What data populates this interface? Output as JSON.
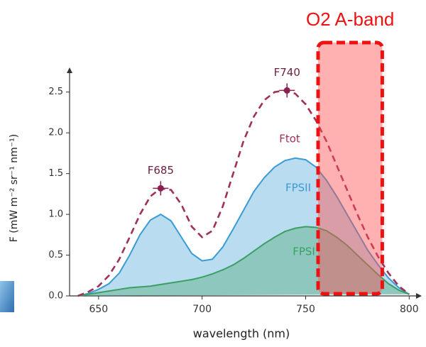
{
  "chart_data": {
    "type": "line",
    "xlabel": "wavelength (nm)",
    "ylabel": "F (mW m⁻² sr⁻¹ nm⁻¹)",
    "x": [
      640,
      645,
      650,
      655,
      660,
      665,
      670,
      675,
      680,
      685,
      690,
      695,
      700,
      705,
      710,
      715,
      720,
      725,
      730,
      735,
      740,
      745,
      750,
      755,
      760,
      765,
      770,
      775,
      780,
      785,
      790,
      795,
      800
    ],
    "series": [
      {
        "name": "FPSII",
        "color": "#3a9bd5",
        "fill": true,
        "values": [
          0,
          0.03,
          0.08,
          0.15,
          0.28,
          0.5,
          0.75,
          0.93,
          1.0,
          0.92,
          0.72,
          0.52,
          0.43,
          0.45,
          0.6,
          0.82,
          1.05,
          1.28,
          1.45,
          1.58,
          1.66,
          1.69,
          1.67,
          1.58,
          1.42,
          1.22,
          1.0,
          0.78,
          0.56,
          0.38,
          0.22,
          0.1,
          0.02
        ]
      },
      {
        "name": "FPSI",
        "color": "#3aa062",
        "fill": true,
        "values": [
          0,
          0.02,
          0.04,
          0.06,
          0.08,
          0.1,
          0.11,
          0.12,
          0.14,
          0.16,
          0.18,
          0.2,
          0.23,
          0.27,
          0.32,
          0.38,
          0.46,
          0.55,
          0.64,
          0.72,
          0.79,
          0.83,
          0.85,
          0.84,
          0.8,
          0.72,
          0.62,
          0.5,
          0.38,
          0.26,
          0.15,
          0.07,
          0.02
        ]
      },
      {
        "name": "Ftot",
        "color": "#a0305a",
        "fill": false,
        "dashed": true,
        "values": [
          0,
          0.05,
          0.12,
          0.25,
          0.45,
          0.72,
          1.0,
          1.22,
          1.32,
          1.3,
          1.12,
          0.85,
          0.72,
          0.8,
          1.1,
          1.5,
          1.9,
          2.2,
          2.4,
          2.5,
          2.52,
          2.48,
          2.35,
          2.15,
          1.9,
          1.6,
          1.3,
          1.0,
          0.72,
          0.48,
          0.28,
          0.12,
          0.02
        ]
      }
    ],
    "points": [
      {
        "label": "F685",
        "x": 680,
        "y": 1.32
      },
      {
        "label": "F740",
        "x": 741,
        "y": 2.52
      }
    ],
    "band": {
      "label": "O2 A-band",
      "xrange": [
        756,
        787
      ]
    },
    "xlim": [
      636,
      804
    ],
    "ylim": [
      0,
      2.75
    ],
    "xticks": [
      650,
      700,
      750,
      800
    ],
    "yticks": [
      {
        "value": 0,
        "label": "0.0"
      },
      {
        "value": 0.5,
        "label": "0.5"
      },
      {
        "value": 1,
        "label": "1.0"
      },
      {
        "value": 1.5,
        "label": "1.5"
      },
      {
        "value": 2,
        "label": "2.0"
      },
      {
        "value": 2.5,
        "label": "2.5"
      }
    ]
  }
}
